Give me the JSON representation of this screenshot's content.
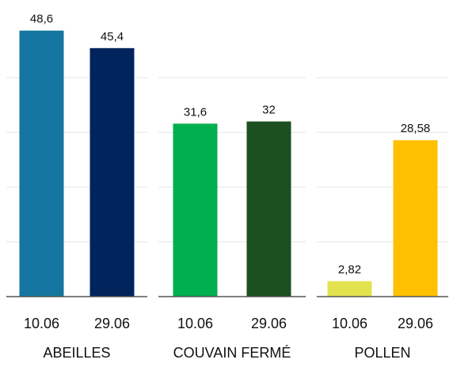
{
  "chart_data": [
    {
      "type": "bar",
      "title": "ABEILLES",
      "categories": [
        "10.06",
        "29.06"
      ],
      "values": [
        48.6,
        45.4
      ],
      "value_labels": [
        "48,6",
        "45,4"
      ],
      "colors": [
        "#1476a0",
        "#00245b"
      ],
      "ylim": [
        0,
        50
      ],
      "yticks": [
        10,
        20,
        30,
        40
      ],
      "grid": true
    },
    {
      "type": "bar",
      "title": "COUVAIN FERMÉ",
      "categories": [
        "10.06",
        "29.06"
      ],
      "values": [
        31.6,
        32
      ],
      "value_labels": [
        "31,6",
        "32"
      ],
      "colors": [
        "#00b050",
        "#1b5020"
      ],
      "ylim": [
        0,
        50
      ],
      "yticks": [
        10,
        20,
        30,
        40
      ],
      "grid": true
    },
    {
      "type": "bar",
      "title": "POLLEN",
      "categories": [
        "10.06",
        "29.06"
      ],
      "values": [
        2.82,
        28.58
      ],
      "value_labels": [
        "2,82",
        "28,58"
      ],
      "colors": [
        "#e2e24e",
        "#ffc000"
      ],
      "ylim": [
        0,
        50
      ],
      "yticks": [
        10,
        20,
        30,
        40
      ],
      "grid": true
    }
  ]
}
